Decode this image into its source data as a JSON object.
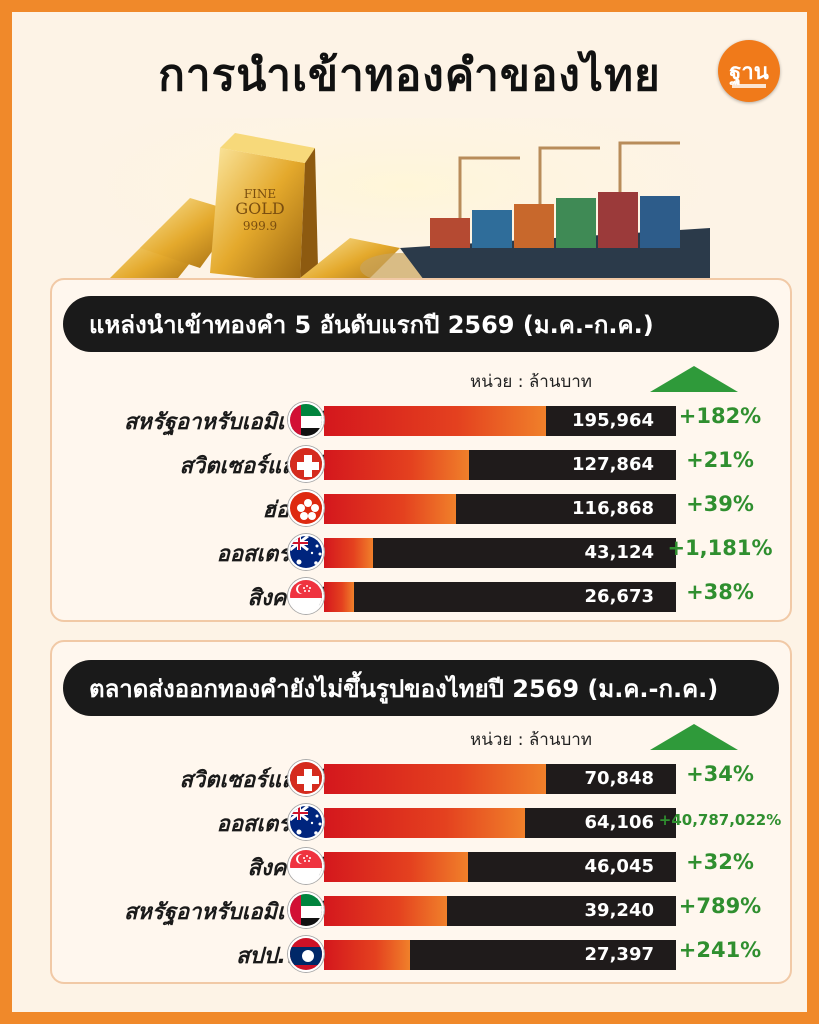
{
  "title": "การนำเข้าทองคำของไทย",
  "logo": "ฐาน",
  "banner": {
    "gold_bar_text_1": "FINE",
    "gold_bar_text_2": "GOLD",
    "gold_bar_text_3": "999.9"
  },
  "colors": {
    "accent": "#f0892a",
    "bar_red": "#d4171d",
    "bar_orange": "#f0802a",
    "positive_green": "#2f9a3a",
    "header_bg": "#1a1a1a"
  },
  "chart_data": [
    {
      "type": "bar",
      "title": "แหล่งนำเข้าทองคำ 5 อันดับแรกปี 2569 (ม.ค.-ก.ค.)",
      "unit_label": "หน่วย : ล้านบาท",
      "categories": [
        "สหรัฐอาหรับเอมิเรตส์",
        "สวิตเซอร์แลนด์",
        "ฮ่องกง",
        "ออสเตรเลีย",
        "สิงคโปร์"
      ],
      "flags": [
        "uae-flag-icon",
        "switzerland-flag-icon",
        "hongkong-flag-icon",
        "australia-flag-icon",
        "singapore-flag-icon"
      ],
      "values": [
        195964,
        127864,
        116868,
        43124,
        26673
      ],
      "value_labels": [
        "195,964",
        "127,864",
        "116,868",
        "43,124",
        "26,673"
      ],
      "changes": [
        "+182%",
        "+21%",
        "+39%",
        "+1,181%",
        "+38%"
      ]
    },
    {
      "type": "bar",
      "title": "ตลาดส่งออกทองคำยังไม่ขึ้นรูปของไทยปี 2569 (ม.ค.-ก.ค.)",
      "unit_label": "หน่วย : ล้านบาท",
      "categories": [
        "สวิตเซอร์แลนด์",
        "ออสเตรเลีย",
        "สิงคโปร์",
        "สหรัฐอาหรับเอมิเรตส์",
        "สปป.ลาว"
      ],
      "flags": [
        "switzerland-flag-icon",
        "australia-flag-icon",
        "singapore-flag-icon",
        "uae-flag-icon",
        "laos-flag-icon"
      ],
      "values": [
        70848,
        64106,
        46045,
        39240,
        27397
      ],
      "value_labels": [
        "70,848",
        "64,106",
        "46,045",
        "39,240",
        "27,397"
      ],
      "changes": [
        "+34%",
        "+40,787,022%",
        "+32%",
        "+789%",
        "+241%"
      ]
    }
  ]
}
